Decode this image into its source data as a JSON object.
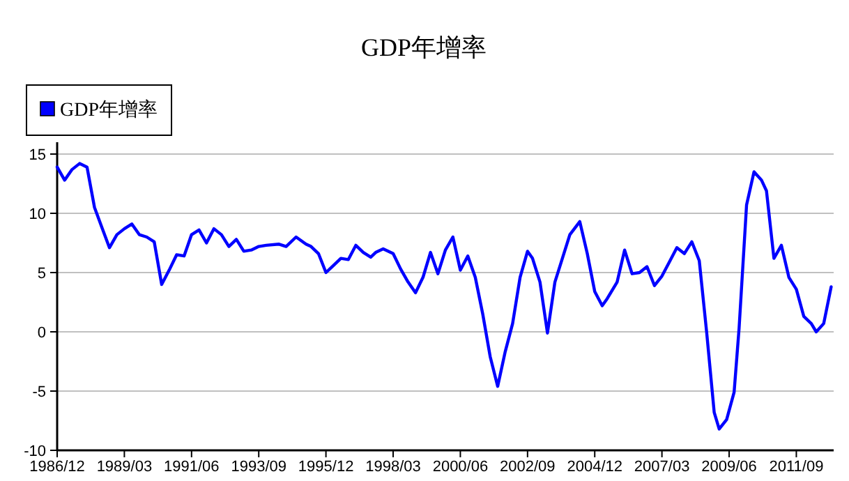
{
  "chart_data": {
    "type": "line",
    "title": "GDP年增率",
    "legend": "top left",
    "grid": "y",
    "line_style": "solid",
    "xlim": [
      "1986-12",
      "2012-12"
    ],
    "xticks": [
      {
        "value": "1986-12",
        "label": "1986/12"
      },
      {
        "value": "1989-03",
        "label": "1989/03"
      },
      {
        "value": "1991-06",
        "label": "1991/06"
      },
      {
        "value": "1993-09",
        "label": "1993/09"
      },
      {
        "value": "1995-12",
        "label": "1995/12"
      },
      {
        "value": "1998-03",
        "label": "1998/03"
      },
      {
        "value": "2000-06",
        "label": "2000/06"
      },
      {
        "value": "2002-09",
        "label": "2002/09"
      },
      {
        "value": "2004-12",
        "label": "2004/12"
      },
      {
        "value": "2007-03",
        "label": "2007/03"
      },
      {
        "value": "2009-06",
        "label": "2009/06"
      },
      {
        "value": "2011-09",
        "label": "2011/09"
      }
    ],
    "ylim": [
      -10,
      16
    ],
    "yticks": [
      -10,
      -5,
      0,
      5,
      10,
      15
    ],
    "x": [
      "1986-12",
      "1987-03",
      "1987-06",
      "1987-09",
      "1987-12",
      "1988-03",
      "1988-06",
      "1988-09",
      "1988-12",
      "1989-03",
      "1989-06",
      "1989-09",
      "1989-12",
      "1990-03",
      "1990-06",
      "1990-09",
      "1990-12",
      "1991-03",
      "1991-06",
      "1991-09",
      "1991-12",
      "1992-03",
      "1992-06",
      "1992-09",
      "1992-12",
      "1993-03",
      "1993-06",
      "1993-09",
      "1993-12",
      "1994-05",
      "1994-08",
      "1994-12",
      "1995-04",
      "1995-06",
      "1995-09",
      "1995-12",
      "1996-03",
      "1996-06",
      "1996-09",
      "1996-12",
      "1997-03",
      "1997-06",
      "1997-08",
      "1997-11",
      "1998-03",
      "1998-06",
      "1998-09",
      "1998-12",
      "1999-03",
      "1999-06",
      "1999-09",
      "1999-12",
      "2000-03",
      "2000-06",
      "2000-09",
      "2000-12",
      "2001-03",
      "2001-06",
      "2001-09",
      "2001-12",
      "2002-03",
      "2002-06",
      "2002-09",
      "2002-11",
      "2003-02",
      "2003-05",
      "2003-08",
      "2003-11",
      "2004-02",
      "2004-06",
      "2004-09",
      "2004-12",
      "2005-03",
      "2005-05",
      "2005-09",
      "2005-12",
      "2006-03",
      "2006-06",
      "2006-09",
      "2006-12",
      "2007-03",
      "2007-06",
      "2007-09",
      "2007-12",
      "2008-03",
      "2008-06",
      "2008-09",
      "2008-12",
      "2009-02",
      "2009-05",
      "2009-08",
      "2009-10",
      "2010-01",
      "2010-04",
      "2010-07",
      "2010-09",
      "2010-12",
      "2011-03",
      "2011-06",
      "2011-09",
      "2011-12",
      "2012-03",
      "2012-05",
      "2012-08",
      "2012-11"
    ],
    "series": [
      {
        "name": "GDP年增率",
        "color": "#0000ff",
        "values": [
          13.9,
          12.8,
          13.7,
          14.2,
          13.9,
          10.5,
          8.8,
          7.1,
          8.2,
          8.7,
          9.1,
          8.2,
          8.0,
          7.6,
          4.0,
          5.2,
          6.5,
          6.4,
          8.2,
          8.6,
          7.5,
          8.7,
          8.2,
          7.2,
          7.8,
          6.8,
          6.9,
          7.2,
          7.3,
          7.4,
          7.2,
          8.0,
          7.4,
          7.2,
          6.6,
          5.0,
          5.6,
          6.2,
          6.1,
          7.3,
          6.7,
          6.3,
          6.7,
          7.0,
          6.6,
          5.3,
          4.2,
          3.3,
          4.6,
          6.7,
          4.9,
          6.9,
          8.0,
          5.2,
          6.4,
          4.6,
          1.5,
          -2.1,
          -4.6,
          -1.7,
          0.7,
          4.6,
          6.8,
          6.2,
          4.2,
          -0.1,
          4.2,
          6.2,
          8.2,
          9.3,
          6.6,
          3.4,
          2.2,
          2.8,
          4.2,
          6.9,
          4.9,
          5.0,
          5.5,
          3.9,
          4.7,
          5.9,
          7.1,
          6.6,
          7.6,
          6.0,
          -0.1,
          -6.8,
          -8.2,
          -7.4,
          -5.1,
          0.3,
          10.7,
          13.5,
          12.8,
          11.9,
          6.2,
          7.3,
          4.6,
          3.6,
          1.3,
          0.7,
          0.0,
          0.7,
          3.8
        ]
      }
    ]
  }
}
